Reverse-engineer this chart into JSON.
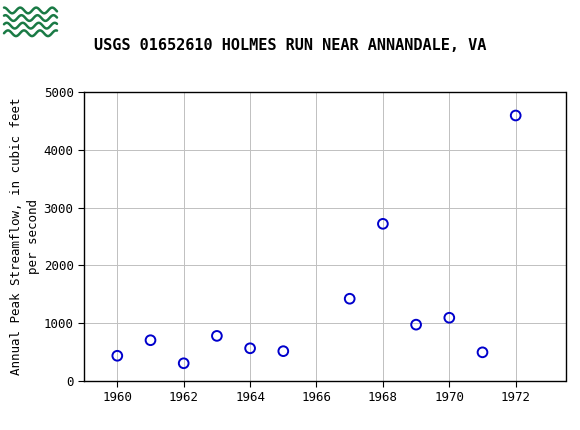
{
  "title": "USGS 01652610 HOLMES RUN NEAR ANNANDALE, VA",
  "ylabel_line1": "Annual Peak Streamflow, in cubic feet",
  "ylabel_line2": "per second",
  "years": [
    1960,
    1961,
    1962,
    1963,
    1964,
    1965,
    1967,
    1968,
    1969,
    1970,
    1971,
    1972
  ],
  "values": [
    430,
    700,
    300,
    775,
    560,
    510,
    1420,
    2720,
    970,
    1090,
    490,
    4600
  ],
  "xlim": [
    1959.0,
    1973.5
  ],
  "ylim": [
    0,
    5000
  ],
  "xticks": [
    1960,
    1962,
    1964,
    1966,
    1968,
    1970,
    1972
  ],
  "yticks": [
    0,
    1000,
    2000,
    3000,
    4000,
    5000
  ],
  "marker_color": "#0000CC",
  "marker_size": 7,
  "grid_color": "#c0c0c0",
  "background_color": "#ffffff",
  "title_fontsize": 11,
  "axis_label_fontsize": 9,
  "tick_fontsize": 9,
  "header_color": "#1a7a45",
  "header_text_color": "#ffffff",
  "border_color": "#000000"
}
